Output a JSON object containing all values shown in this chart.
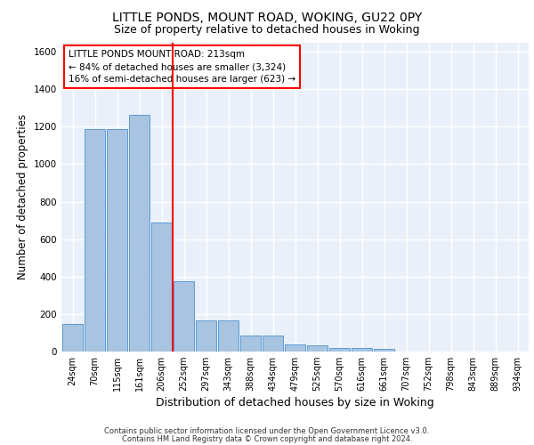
{
  "title": "LITTLE PONDS, MOUNT ROAD, WOKING, GU22 0PY",
  "subtitle": "Size of property relative to detached houses in Woking",
  "xlabel": "Distribution of detached houses by size in Woking",
  "ylabel": "Number of detached properties",
  "footer_line1": "Contains HM Land Registry data © Crown copyright and database right 2024.",
  "footer_line2": "Contains public sector information licensed under the Open Government Licence v3.0.",
  "categories": [
    "24sqm",
    "70sqm",
    "115sqm",
    "161sqm",
    "206sqm",
    "252sqm",
    "297sqm",
    "343sqm",
    "388sqm",
    "434sqm",
    "479sqm",
    "525sqm",
    "570sqm",
    "616sqm",
    "661sqm",
    "707sqm",
    "752sqm",
    "798sqm",
    "843sqm",
    "889sqm",
    "934sqm"
  ],
  "values": [
    145,
    1185,
    1185,
    1265,
    690,
    375,
    165,
    165,
    85,
    85,
    40,
    35,
    20,
    20,
    15,
    0,
    0,
    0,
    0,
    0,
    0
  ],
  "bar_color": "#a8c4e0",
  "bar_edge_color": "#5b9bd5",
  "red_line_x": 4.5,
  "annotation_title": "LITTLE PONDS MOUNT ROAD: 213sqm",
  "annotation_line2": "← 84% of detached houses are smaller (3,324)",
  "annotation_line3": "16% of semi-detached houses are larger (623) →",
  "ylim": [
    0,
    1650
  ],
  "yticks": [
    0,
    200,
    400,
    600,
    800,
    1000,
    1200,
    1400,
    1600
  ],
  "background_color": "#eaf0fa",
  "grid_color": "#ffffff",
  "title_fontsize": 10,
  "subtitle_fontsize": 9,
  "axis_label_fontsize": 8.5,
  "tick_fontsize": 7,
  "footer_fontsize": 6,
  "annotation_fontsize": 7.5
}
